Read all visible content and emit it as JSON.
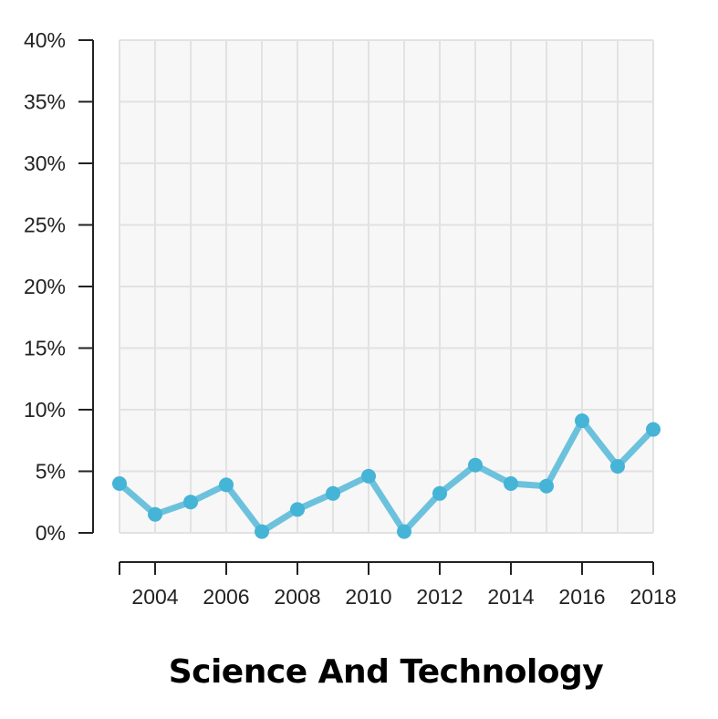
{
  "chart_data": {
    "type": "line",
    "title": "Science And Technology",
    "xlabel": "",
    "ylabel": "",
    "x": [
      2003,
      2004,
      2005,
      2006,
      2007,
      2008,
      2009,
      2010,
      2011,
      2012,
      2013,
      2014,
      2015,
      2016,
      2017,
      2018
    ],
    "series": [
      {
        "values": [
          4.0,
          1.5,
          2.5,
          3.9,
          0.1,
          1.9,
          3.2,
          4.6,
          0.1,
          3.2,
          5.5,
          4.0,
          3.8,
          9.1,
          5.4,
          8.4
        ]
      }
    ],
    "xlim": [
      2003,
      2018
    ],
    "ylim": [
      0,
      40
    ],
    "x_ticks": [
      "2004",
      "2006",
      "2008",
      "2010",
      "2012",
      "2014",
      "2016",
      "2018"
    ],
    "y_ticks": [
      "0%",
      "5%",
      "10%",
      "15%",
      "20%",
      "25%",
      "30%",
      "35%",
      "40%"
    ],
    "grid": true,
    "legend": "none",
    "colors": {
      "line": "#6cc2dc",
      "marker": "#45b4d6",
      "plot_background": "#f7f7f7",
      "grid": "#e2e2e2",
      "axis": "#222222"
    }
  }
}
